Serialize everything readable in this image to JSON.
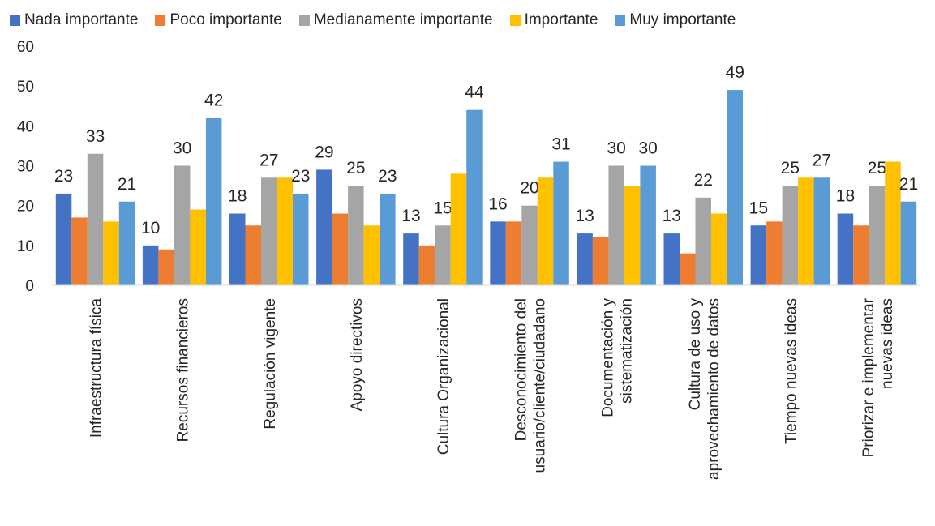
{
  "chart_data": {
    "type": "bar",
    "title": "",
    "xlabel": "",
    "ylabel": "",
    "ylim": [
      0,
      60
    ],
    "yticks": [
      "0",
      "10",
      "20",
      "30",
      "40",
      "50",
      "60"
    ],
    "grid": false,
    "legend_position": "top",
    "categories": [
      [
        "Infraestructura física"
      ],
      [
        "Recursos financieros"
      ],
      [
        "Regulación vigente"
      ],
      [
        "Apoyo directivos"
      ],
      [
        "Cultura Organizacional"
      ],
      [
        "Desconocimiento del",
        "usuario/cliente/ciudadano"
      ],
      [
        "Documentación y",
        "sistematización"
      ],
      [
        "Cultura de uso y",
        "aprovechamiento de datos"
      ],
      [
        "Tiempo nuevas ideas"
      ],
      [
        "Priorizar e implementar",
        "nuevas ideas"
      ]
    ],
    "series": [
      {
        "name": "Nada importante",
        "color": "#4472C4",
        "values": [
          23,
          10,
          18,
          29,
          13,
          16,
          13,
          13,
          15,
          18
        ],
        "labels": [
          "23",
          "10",
          "18",
          "29",
          "13",
          "16",
          "13",
          "13",
          "15",
          "18"
        ]
      },
      {
        "name": "Poco importante",
        "color": "#ED7D31",
        "values": [
          17,
          9,
          15,
          18,
          10,
          16,
          12,
          8,
          16,
          15
        ],
        "labels": []
      },
      {
        "name": "Medianamente importante",
        "color": "#A5A5A5",
        "values": [
          33,
          30,
          27,
          25,
          15,
          20,
          30,
          22,
          25,
          25
        ],
        "labels": [
          "33",
          "30",
          "27",
          "25",
          "15",
          "20",
          "30",
          "22",
          "25",
          "25"
        ]
      },
      {
        "name": "Importante",
        "color": "#FFC000",
        "values": [
          16,
          19,
          27,
          15,
          28,
          27,
          25,
          18,
          27,
          31
        ],
        "labels": []
      },
      {
        "name": "Muy importante",
        "color": "#5B9BD5",
        "values": [
          21,
          42,
          23,
          23,
          44,
          31,
          30,
          49,
          27,
          21
        ],
        "labels": [
          "21",
          "42",
          "23",
          "23",
          "44",
          "31",
          "30",
          "49",
          "27",
          "21"
        ]
      }
    ]
  }
}
